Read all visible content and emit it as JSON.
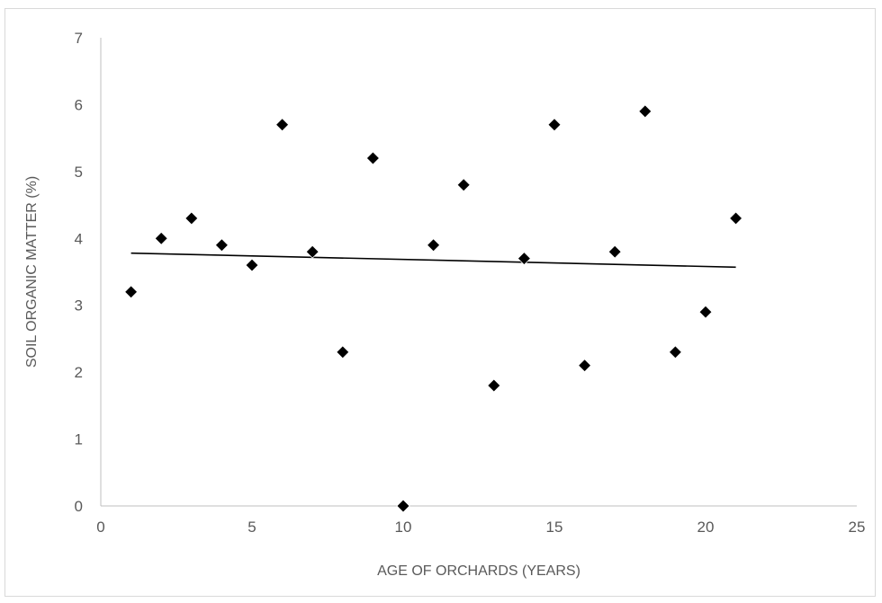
{
  "chart_data": {
    "type": "scatter",
    "title": "",
    "xlabel": "AGE OF ORCHARDS (YEARS)",
    "ylabel": "SOIL ORGANIC MATTER (%)",
    "xlim": [
      0,
      25
    ],
    "ylim": [
      0,
      7
    ],
    "x_ticks": [
      "0",
      "5",
      "10",
      "15",
      "20",
      "25"
    ],
    "y_ticks": [
      "0",
      "1",
      "2",
      "3",
      "4",
      "5",
      "6",
      "7"
    ],
    "grid": false,
    "legend": "none",
    "marker": "diamond",
    "marker_color": "#000000",
    "series": [
      {
        "x": [
          1,
          2,
          3,
          4,
          5,
          6,
          7,
          8,
          9,
          10,
          11,
          12,
          13,
          14,
          15,
          16,
          17,
          18,
          19,
          20,
          21
        ],
        "y": [
          3.2,
          4.0,
          4.3,
          3.9,
          3.6,
          5.7,
          3.8,
          2.3,
          5.2,
          0.0,
          3.9,
          4.8,
          1.8,
          3.7,
          5.7,
          2.1,
          3.8,
          5.9,
          2.3,
          2.9,
          4.3
        ]
      }
    ],
    "trendline": {
      "type": "linear",
      "x": [
        1,
        21
      ],
      "y": [
        3.78,
        3.57
      ],
      "color": "#000000"
    }
  }
}
